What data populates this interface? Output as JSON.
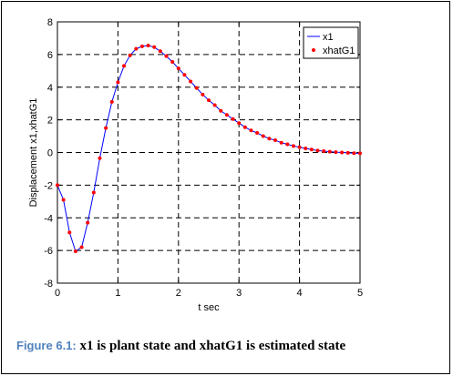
{
  "chart_data": {
    "type": "line",
    "xlabel": "t sec",
    "ylabel": "Displacement x1,xhatG1",
    "xlim": [
      0,
      5
    ],
    "ylim": [
      -8,
      8
    ],
    "xticks": [
      "0",
      "1",
      "2",
      "3",
      "4",
      "5"
    ],
    "yticks": [
      "-8",
      "-6",
      "-4",
      "-2",
      "0",
      "2",
      "4",
      "6",
      "8"
    ],
    "grid": true,
    "legend_position": "top-right",
    "series": [
      {
        "name": "x1",
        "style": "line",
        "color": "#0000ff",
        "x": [
          0,
          0.1,
          0.2,
          0.3,
          0.4,
          0.5,
          0.6,
          0.7,
          0.8,
          0.9,
          1.0,
          1.1,
          1.2,
          1.3,
          1.4,
          1.5,
          1.6,
          1.7,
          1.8,
          1.9,
          2.0,
          2.1,
          2.2,
          2.3,
          2.4,
          2.5,
          2.6,
          2.7,
          2.8,
          2.9,
          3.0,
          3.1,
          3.2,
          3.3,
          3.4,
          3.5,
          3.6,
          3.7,
          3.8,
          3.9,
          4.0,
          4.1,
          4.2,
          4.3,
          4.4,
          4.5,
          4.6,
          4.7,
          4.8,
          4.9,
          5.0
        ],
        "y": [
          -2.0,
          -2.9,
          -4.9,
          -6.05,
          -5.8,
          -4.3,
          -2.45,
          -0.35,
          1.5,
          3.1,
          4.3,
          5.3,
          5.95,
          6.35,
          6.5,
          6.55,
          6.45,
          6.2,
          5.9,
          5.55,
          5.15,
          4.75,
          4.35,
          3.95,
          3.55,
          3.2,
          2.9,
          2.55,
          2.3,
          2.05,
          1.8,
          1.55,
          1.35,
          1.2,
          1.0,
          0.85,
          0.75,
          0.6,
          0.5,
          0.4,
          0.32,
          0.25,
          0.18,
          0.12,
          0.08,
          0.05,
          0.02,
          0.0,
          -0.02,
          -0.04,
          -0.05
        ]
      },
      {
        "name": "xhatG1",
        "style": "markers",
        "color": "#ff0000",
        "x": [
          0,
          0.1,
          0.2,
          0.3,
          0.4,
          0.5,
          0.6,
          0.7,
          0.8,
          0.9,
          1.0,
          1.1,
          1.2,
          1.3,
          1.4,
          1.5,
          1.6,
          1.7,
          1.8,
          1.9,
          2.0,
          2.1,
          2.2,
          2.3,
          2.4,
          2.5,
          2.6,
          2.7,
          2.8,
          2.9,
          3.0,
          3.1,
          3.2,
          3.3,
          3.4,
          3.5,
          3.6,
          3.7,
          3.8,
          3.9,
          4.0,
          4.1,
          4.2,
          4.3,
          4.4,
          4.5,
          4.6,
          4.7,
          4.8,
          4.9,
          5.0
        ],
        "y": [
          -2.0,
          -2.9,
          -4.9,
          -6.05,
          -5.8,
          -4.3,
          -2.45,
          -0.35,
          1.5,
          3.1,
          4.3,
          5.3,
          5.95,
          6.35,
          6.5,
          6.55,
          6.45,
          6.2,
          5.9,
          5.55,
          5.15,
          4.75,
          4.35,
          3.95,
          3.55,
          3.2,
          2.9,
          2.55,
          2.3,
          2.05,
          1.8,
          1.55,
          1.35,
          1.2,
          1.0,
          0.85,
          0.75,
          0.6,
          0.5,
          0.4,
          0.32,
          0.25,
          0.18,
          0.12,
          0.08,
          0.05,
          0.02,
          0.0,
          -0.02,
          -0.04,
          -0.05
        ]
      }
    ]
  },
  "caption": {
    "label": "Figure 6.1:",
    "text": " x1 is plant state and xhatG1 is estimated state"
  }
}
